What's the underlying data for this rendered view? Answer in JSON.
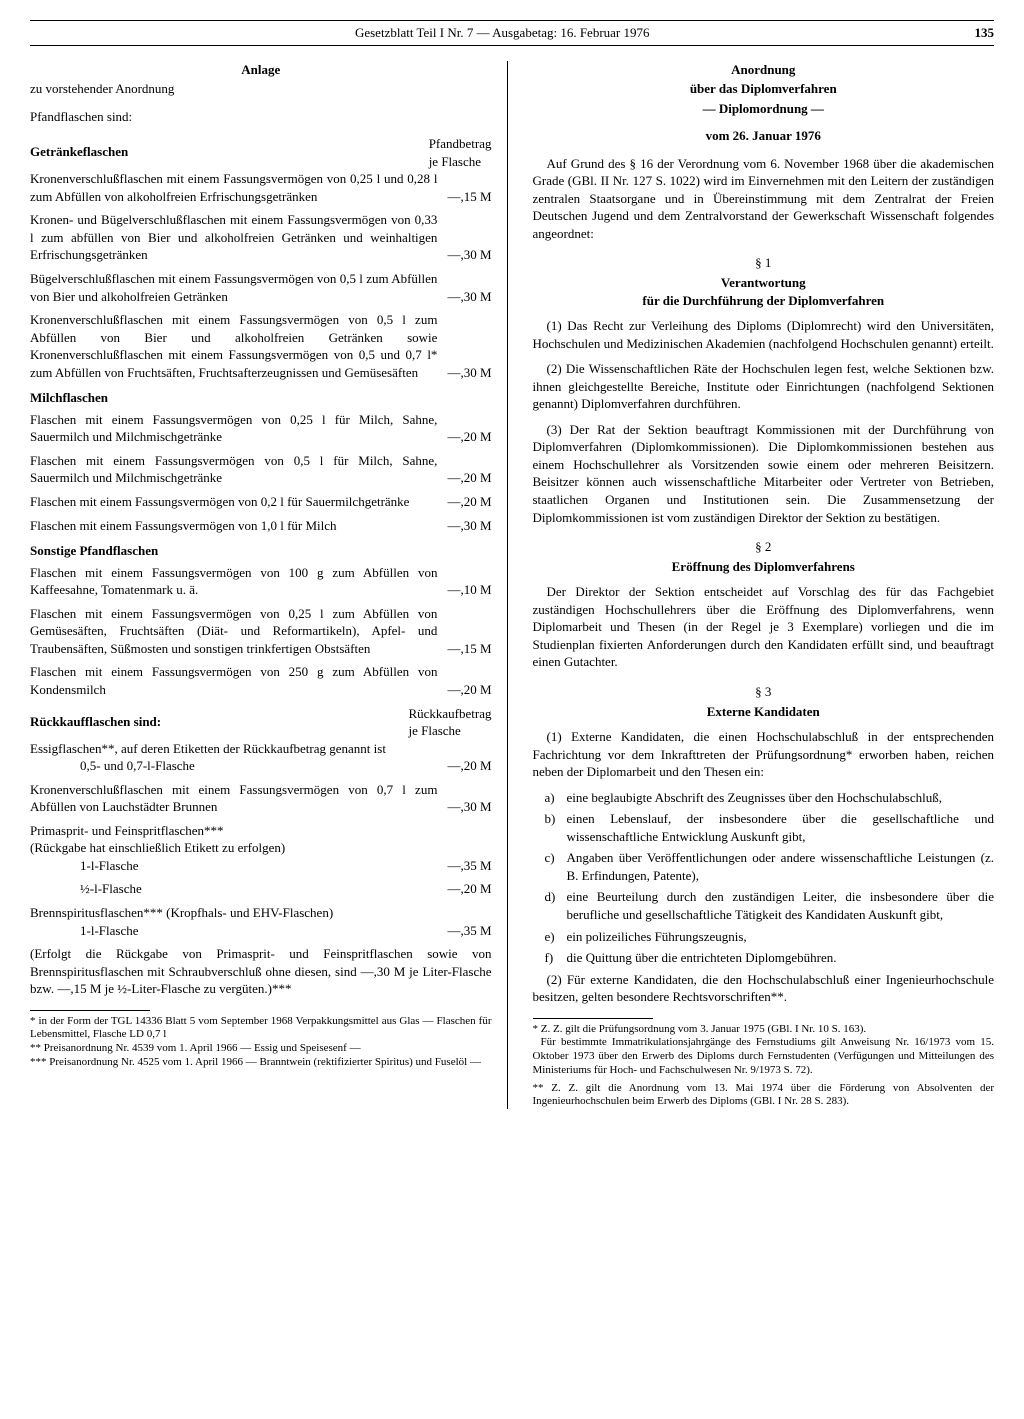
{
  "header": {
    "center": "Gesetzblatt Teil I Nr. 7 — Ausgabetag: 16. Februar 1976",
    "page": "135"
  },
  "left": {
    "anlage": "Anlage",
    "anlage_sub": "zu vorstehender Anordnung",
    "pfand_intro": "Pfandflaschen sind:",
    "getraenke_h": "Getränkeflaschen",
    "price_header1": "Pfandbetrag",
    "price_header2": "je Flasche",
    "items1": [
      {
        "desc": "Kronenverschlußflaschen mit einem Fassungsvermögen von 0,25 l und 0,28 l zum Abfüllen von alkoholfreien Erfrischungsgetränken",
        "val": "—,15 M"
      },
      {
        "desc": "Kronen- und Bügelverschlußflaschen mit einem Fassungsvermögen von 0,33 l zum abfüllen von Bier und alkoholfreien Getränken und weinhaltigen Erfrischungsgetränken",
        "val": "—,30 M"
      },
      {
        "desc": "Bügelverschlußflaschen mit einem Fassungsvermögen von 0,5 l zum Abfüllen von Bier und alkoholfreien Getränken",
        "val": "—,30 M"
      },
      {
        "desc": "Kronenverschlußflaschen mit einem Fassungsvermögen von 0,5 l zum Abfüllen von Bier und alkoholfreien Getränken sowie Kronenverschlußflaschen mit einem Fassungsvermögen von 0,5 und 0,7 l* zum Abfüllen von Fruchtsäften, Fruchtsafterzeugnissen und Gemüsesäften",
        "val": "—,30 M"
      }
    ],
    "milch_h": "Milchflaschen",
    "items2": [
      {
        "desc": "Flaschen mit einem Fassungsvermögen von 0,25 l für Milch, Sahne, Sauermilch und Milchmischgetränke",
        "val": "—,20 M"
      },
      {
        "desc": "Flaschen mit einem Fassungsvermögen von 0,5 l für Milch, Sahne, Sauermilch und Milchmischgetränke",
        "val": "—,20 M"
      },
      {
        "desc": "Flaschen mit einem Fassungsvermögen von 0,2 l für Sauermilchgetränke",
        "val": "—,20 M"
      },
      {
        "desc": "Flaschen mit einem Fassungsvermögen von 1,0 l für Milch",
        "val": "—,30 M"
      }
    ],
    "sonstige_h": "Sonstige Pfandflaschen",
    "items3": [
      {
        "desc": "Flaschen mit einem Fassungsvermögen von 100 g zum Abfüllen von Kaffeesahne, Tomatenmark u. ä.",
        "val": "—,10 M"
      },
      {
        "desc": "Flaschen mit einem Fassungsvermögen von 0,25 l zum Abfüllen von Gemüsesäften, Fruchtsäften (Diät- und Reformartikeln), Apfel- und Traubensäften, Süßmosten und sonstigen trinkfertigen Obstsäften",
        "val": "—,15 M"
      },
      {
        "desc": "Flaschen mit einem Fassungsvermögen von 250 g zum Abfüllen von Kondensmilch",
        "val": "—,20 M"
      }
    ],
    "rueck_h": "Rückkaufflaschen sind:",
    "rueck_header1": "Rückkaufbetrag",
    "rueck_header2": "je Flasche",
    "essig_desc": "Essigflaschen**, auf deren Etiketten der Rückkaufbetrag genannt ist",
    "essig_sub": "0,5- und 0,7-l-Flasche",
    "essig_val": "—,20 M",
    "lauch_desc": "Kronenverschlußflaschen mit einem Fassungsvermögen von 0,7 l zum Abfüllen von Lauchstädter Brunnen",
    "lauch_val": "—,30 M",
    "prima_desc": "Primasprit- und Feinspritflaschen***",
    "prima_sub": "(Rückgabe hat einschließlich Etikett zu erfolgen)",
    "prima_1l": "1-l-Flasche",
    "prima_1l_val": "—,35 M",
    "prima_half": "½-l-Flasche",
    "prima_half_val": "—,20 M",
    "brenn_desc": "Brennspiritusflaschen*** (Kropfhals- und EHV-Flaschen)",
    "brenn_1l": "1-l-Flasche",
    "brenn_1l_val": "—,35 M",
    "note": "(Erfolgt die Rückgabe von Primasprit- und Feinspritflaschen sowie von Brennspiritusflaschen mit Schraubverschluß ohne diesen, sind —,30 M je Liter-Flasche bzw. —,15 M je ½-Liter-Flasche zu vergüten.)***",
    "fn1": "* in der Form der TGL 14336 Blatt 5 vom September 1968 Verpakkungsmittel aus Glas — Flaschen für Lebensmittel, Flasche LD 0,7 l",
    "fn2": "** Preisanordnung Nr. 4539 vom 1. April 1966 — Essig und Speisesenf —",
    "fn3": "*** Preisanordnung Nr. 4525 vom 1. April 1966 — Branntwein (rektifizierter Spiritus) und Fuselöl —"
  },
  "right": {
    "title1": "Anordnung",
    "title2": "über das Diplomverfahren",
    "title3": "— Diplomordnung —",
    "date": "vom 26. Januar 1976",
    "intro": "Auf Grund des § 16 der Verordnung vom 6. November 1968 über die akademischen Grade (GBl. II Nr. 127 S. 1022) wird im Einvernehmen mit den Leitern der zuständigen zentralen Staatsorgane und in Übereinstimmung mit dem Zentralrat der Freien Deutschen Jugend und dem Zentralvorstand der Gewerkschaft Wissenschaft folgendes angeordnet:",
    "s1": "§ 1",
    "s1_title1": "Verantwortung",
    "s1_title2": "für die Durchführung der Diplomverfahren",
    "s1_p1": "(1) Das Recht zur Verleihung des Diploms (Diplomrecht) wird den Universitäten, Hochschulen und Medizinischen Akademien (nachfolgend Hochschulen genannt) erteilt.",
    "s1_p2": "(2) Die Wissenschaftlichen Räte der Hochschulen legen fest, welche Sektionen bzw. ihnen gleichgestellte Bereiche, Institute oder Einrichtungen (nachfolgend Sektionen genannt) Diplomverfahren durchführen.",
    "s1_p3": "(3) Der Rat der Sektion beauftragt Kommissionen mit der Durchführung von Diplomverfahren (Diplomkommissionen). Die Diplomkommissionen bestehen aus einem Hochschullehrer als Vorsitzenden sowie einem oder mehreren Beisitzern. Beisitzer können auch wissenschaftliche Mitarbeiter oder Vertreter von Betrieben, staatlichen Organen und Institutionen sein. Die Zusammensetzung der Diplomkommissionen ist vom zuständigen Direktor der Sektion zu bestätigen.",
    "s2": "§ 2",
    "s2_title": "Eröffnung des Diplomverfahrens",
    "s2_p": "Der Direktor der Sektion entscheidet auf Vorschlag des für das Fachgebiet zuständigen Hochschullehrers über die Eröffnung des Diplomverfahrens, wenn Diplomarbeit und Thesen (in der Regel je 3 Exemplare) vorliegen und die im Studienplan fixierten Anforderungen durch den Kandidaten erfüllt sind, und beauftragt einen Gutachter.",
    "s3": "§ 3",
    "s3_title": "Externe Kandidaten",
    "s3_p1": "(1) Externe Kandidaten, die einen Hochschulabschluß in der entsprechenden Fachrichtung vor dem Inkrafttreten der Prüfungsordnung* erworben haben, reichen neben der Diplomarbeit und den Thesen ein:",
    "s3_list": [
      {
        "m": "a)",
        "t": "eine beglaubigte Abschrift des Zeugnisses über den Hochschulabschluß,"
      },
      {
        "m": "b)",
        "t": "einen Lebenslauf, der insbesondere über die gesellschaftliche und wissenschaftliche Entwicklung Auskunft gibt,"
      },
      {
        "m": "c)",
        "t": "Angaben über Veröffentlichungen oder andere wissenschaftliche Leistungen (z. B. Erfindungen, Patente),"
      },
      {
        "m": "d)",
        "t": "eine Beurteilung durch den zuständigen Leiter, die insbesondere über die berufliche und gesellschaftliche Tätigkeit des Kandidaten Auskunft gibt,"
      },
      {
        "m": "e)",
        "t": "ein polizeiliches Führungszeugnis,"
      },
      {
        "m": "f)",
        "t": "die Quittung über die entrichteten Diplomgebühren."
      }
    ],
    "s3_p2": "(2) Für externe Kandidaten, die den Hochschulabschluß einer Ingenieurhochschule besitzen, gelten besondere Rechtsvorschriften**.",
    "fn1": "* Z. Z. gilt die Prüfungsordnung vom 3. Januar 1975 (GBl. I Nr. 10 S. 163).",
    "fn1b": "Für bestimmte Immatrikulationsjahrgänge des Fernstudiums gilt Anweisung Nr. 16/1973 vom 15. Oktober 1973 über den Erwerb des Diploms durch Fernstudenten (Verfügungen und Mitteilungen des Ministeriums für Hoch- und Fachschulwesen Nr. 9/1973 S. 72).",
    "fn2": "** Z. Z. gilt die Anordnung vom 13. Mai 1974 über die Förderung von Absolventen der Ingenieurhochschulen beim Erwerb des Diploms (GBl. I Nr. 28 S. 283)."
  }
}
